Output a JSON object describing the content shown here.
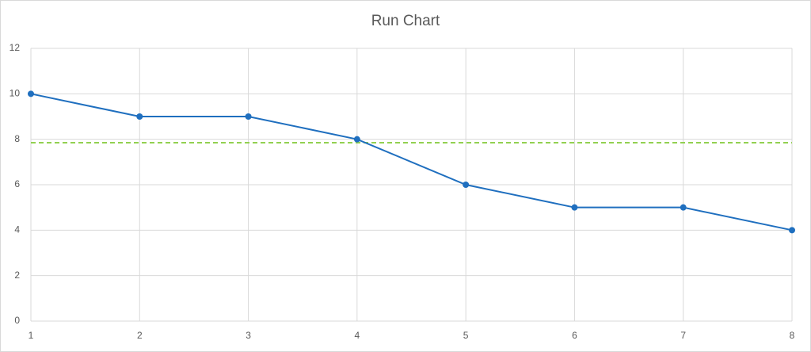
{
  "chart_data": {
    "type": "line",
    "title": "Run Chart",
    "x": [
      1,
      2,
      3,
      4,
      5,
      6,
      7,
      8
    ],
    "series": [
      {
        "color": "#1f6fbf",
        "values": [
          10,
          9,
          9,
          8,
          6,
          5,
          5,
          4
        ]
      }
    ],
    "reference_line": {
      "value": 7.85,
      "color": "#92d050",
      "dashed": true
    },
    "xlim": [
      1,
      8
    ],
    "xticks": [
      1,
      2,
      3,
      4,
      5,
      6,
      7,
      8
    ],
    "ylim": [
      0,
      12
    ],
    "yticks": [
      0,
      2,
      4,
      6,
      8,
      10,
      12
    ],
    "grid": true
  }
}
